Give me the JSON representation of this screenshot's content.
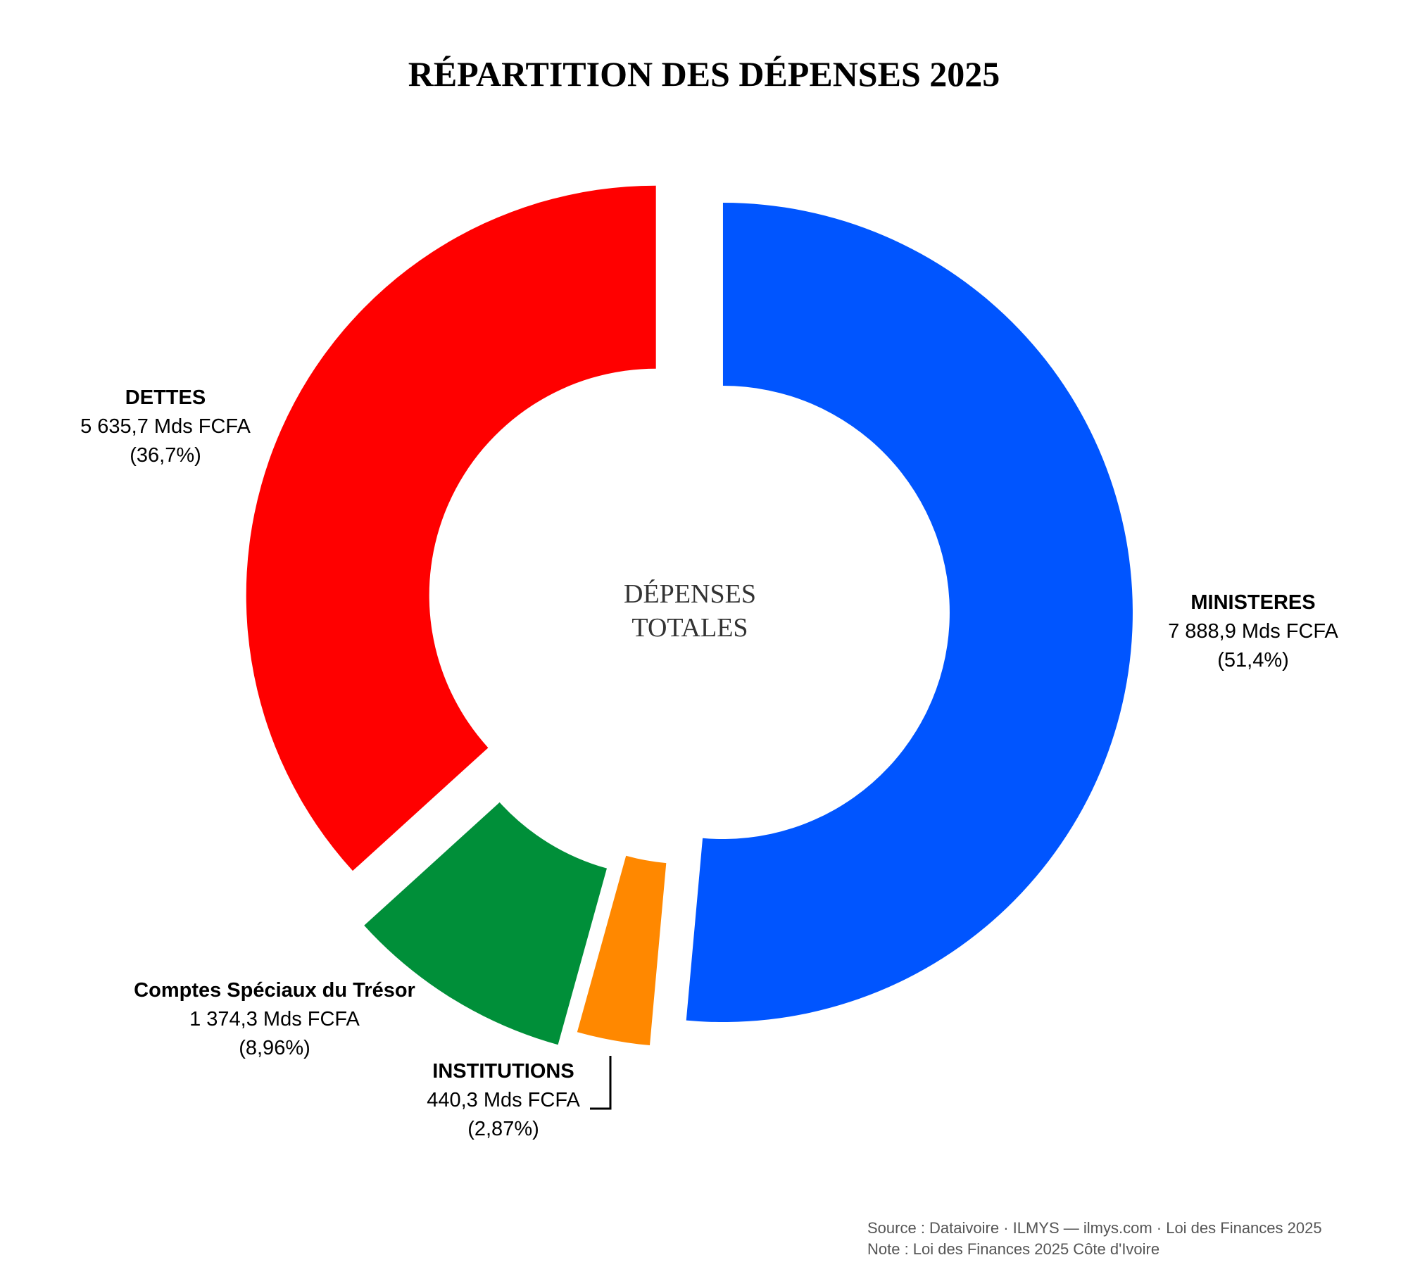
{
  "chart_data": {
    "type": "pie",
    "title": "RÉPARTITION DES DÉPENSES 2025",
    "center_label": [
      "DÉPENSES",
      "TOTALES"
    ],
    "donut": true,
    "unit": "Mds FCFA",
    "categories": [
      "MINISTERES",
      "INSTITUTIONS",
      "Comptes Spéciaux du Trésor",
      "DETTES"
    ],
    "values": [
      7888.9,
      440.3,
      1374.3,
      5635.7
    ],
    "percentages": [
      51.4,
      2.87,
      8.96,
      36.7
    ],
    "value_labels": [
      "7 888,9 Mds FCFA",
      "440,3 Mds FCFA",
      "1 374,3 Mds FCFA",
      "5 635,7 Mds FCFA"
    ],
    "percent_labels": [
      "(51,4%)",
      "(2,87%)",
      "(8,96%)",
      "(36,7%)"
    ],
    "colors": [
      "#0055ff",
      "#ff8800",
      "#008f39",
      "#ff0000"
    ],
    "start_angle": "12 o'clock",
    "direction": "clockwise",
    "exploded": true
  },
  "footer": {
    "source": "Source : Dataivoire  ·  ILMYS — ilmys.com  ·  Loi des Finances 2025",
    "note": "Note : Loi des Finances 2025  Côte d'Ivoire"
  }
}
